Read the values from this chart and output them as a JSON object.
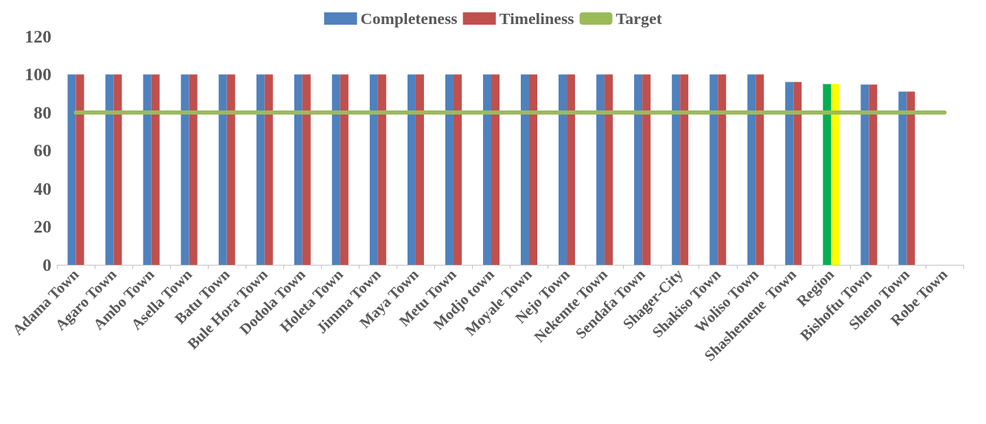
{
  "chart_data": {
    "type": "bar",
    "categories": [
      "Adama Town",
      "Agaro Town",
      "Ambo Town",
      "Asella Town",
      "Batu Town",
      "Bule Hora Town",
      "Dodola Town",
      "Holeta Town",
      "Jimma Town",
      "Maya Town",
      "Metu Town",
      "Modjo town",
      "Moyale Town",
      "Nejo Town",
      "Nekemte Town",
      "Sendafa Town",
      "Shager-City",
      "Shakiso Town",
      "Woliso Town",
      "Shashemene  Town",
      "Region",
      "Bishoftu Town",
      "Sheno Town",
      "Robe Town"
    ],
    "series": [
      {
        "name": "Completeness",
        "color": "#4f81bd",
        "colors": [
          "#4f81bd",
          "#4f81bd",
          "#4f81bd",
          "#4f81bd",
          "#4f81bd",
          "#4f81bd",
          "#4f81bd",
          "#4f81bd",
          "#4f81bd",
          "#4f81bd",
          "#4f81bd",
          "#4f81bd",
          "#4f81bd",
          "#4f81bd",
          "#4f81bd",
          "#4f81bd",
          "#4f81bd",
          "#4f81bd",
          "#4f81bd",
          "#4f81bd",
          "#00b050",
          "#4f81bd",
          "#4f81bd",
          "#4f81bd"
        ],
        "values": [
          100,
          100,
          100,
          100,
          100,
          100,
          100,
          100,
          100,
          100,
          100,
          100,
          100,
          100,
          100,
          100,
          100,
          100,
          100,
          96,
          95,
          94.7,
          91,
          null
        ]
      },
      {
        "name": "Timeliness",
        "color": "#c0504d",
        "colors": [
          "#c0504d",
          "#c0504d",
          "#c0504d",
          "#c0504d",
          "#c0504d",
          "#c0504d",
          "#c0504d",
          "#c0504d",
          "#c0504d",
          "#c0504d",
          "#c0504d",
          "#c0504d",
          "#c0504d",
          "#c0504d",
          "#c0504d",
          "#c0504d",
          "#c0504d",
          "#c0504d",
          "#c0504d",
          "#c0504d",
          "#ffff00",
          "#c0504d",
          "#c0504d",
          "#c0504d"
        ],
        "values": [
          100,
          100,
          100,
          100,
          100,
          100,
          100,
          100,
          100,
          100,
          100,
          100,
          100,
          100,
          100,
          100,
          100,
          100,
          100,
          96,
          95,
          94.7,
          91,
          null
        ]
      },
      {
        "name": "Target",
        "type": "line",
        "color": "#9bbb59",
        "values": [
          80,
          80,
          80,
          80,
          80,
          80,
          80,
          80,
          80,
          80,
          80,
          80,
          80,
          80,
          80,
          80,
          80,
          80,
          80,
          80,
          80,
          80,
          80,
          80
        ]
      }
    ],
    "ylim": [
      0,
      120
    ],
    "yticks": [
      0,
      20,
      40,
      60,
      80,
      100,
      120
    ],
    "grid": false,
    "legend": "top",
    "marker": "none",
    "line_style": "solid"
  }
}
